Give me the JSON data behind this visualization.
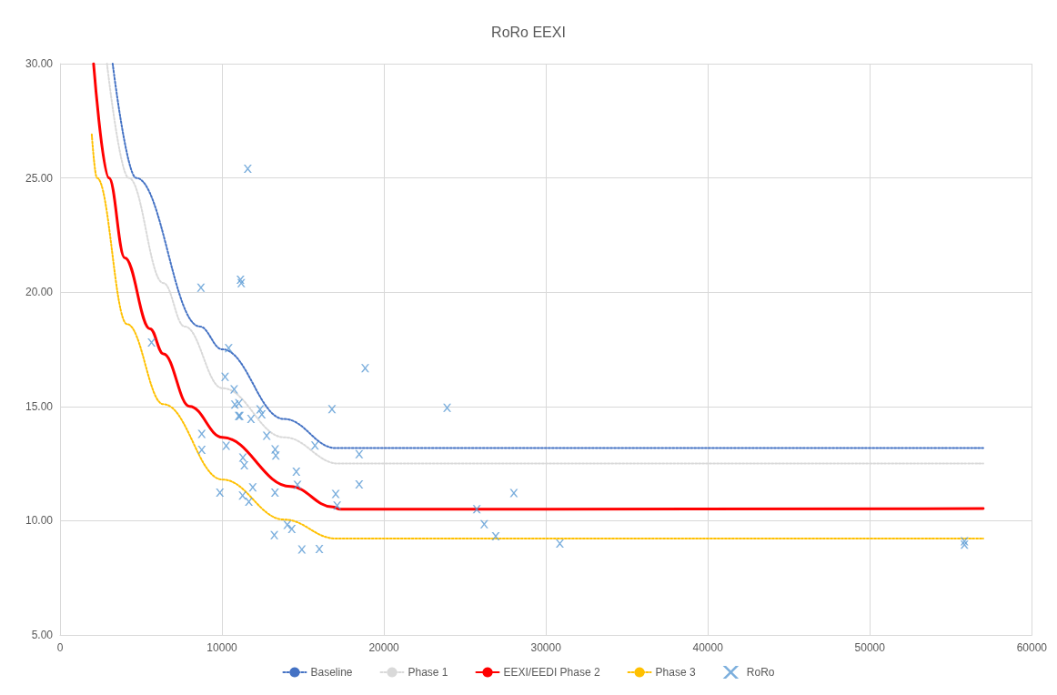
{
  "chart_data": {
    "type": "scatter",
    "title": "RoRo EEXI",
    "xlim": [
      0,
      60000
    ],
    "xticks": [
      0,
      10000,
      20000,
      30000,
      40000,
      50000,
      60000
    ],
    "ylim": [
      5,
      30
    ],
    "yticks": [
      {
        "value": 5,
        "label": "5.00"
      },
      {
        "value": 10,
        "label": "10.00"
      },
      {
        "value": 15,
        "label": "15.00"
      },
      {
        "value": 20,
        "label": "20.00"
      },
      {
        "value": 25,
        "label": "25.00"
      },
      {
        "value": 30,
        "label": "30.00"
      }
    ],
    "grid": true,
    "legend": "bottom",
    "series": [
      {
        "name": "Baseline",
        "type": "line",
        "color": "#4472c4",
        "line_style": "dotted",
        "marker": "none",
        "x": [
          3250,
          4700,
          8620,
          10020,
          13840,
          17020,
          57000
        ],
        "values": [
          30,
          25,
          18.5,
          17.5,
          14.45,
          13.18,
          13.18
        ]
      },
      {
        "name": "Phase 1",
        "type": "line",
        "color": "#d9d9d9",
        "line_style": "dotted",
        "marker": "none",
        "x": [
          2900,
          4240,
          6380,
          7690,
          10020,
          13840,
          17200,
          57000
        ],
        "values": [
          30,
          25,
          20.4,
          18.5,
          15.8,
          13.65,
          12.5,
          12.5
        ]
      },
      {
        "name": "EEXI/EEDI Phase 2",
        "type": "line",
        "color": "#ff0000",
        "line_style": "solid",
        "marker": "none",
        "x": [
          2070,
          3020,
          4000,
          5560,
          6380,
          8000,
          10020,
          14220,
          16830,
          17300,
          57000
        ],
        "values": [
          30,
          25,
          21.5,
          18.4,
          17.3,
          15,
          13.65,
          11.5,
          10.6,
          10.5,
          10.53
        ]
      },
      {
        "name": "Phase 3",
        "type": "line",
        "color": "#ffc000",
        "line_style": "dotted",
        "marker": "none",
        "x": [
          1960,
          2280,
          4140,
          6380,
          10020,
          13840,
          17020,
          57000
        ],
        "values": [
          26.9,
          25,
          18.6,
          15.1,
          11.8,
          10.05,
          9.22,
          9.22
        ]
      },
      {
        "name": "RoRo",
        "color": "#5b9bd5",
        "marker": "cross",
        "x": [
          8700,
          5650,
          11590,
          11140,
          11190,
          10410,
          10190,
          10750,
          10790,
          11040,
          11030,
          11100,
          11790,
          12350,
          12460,
          12760,
          8750,
          8750,
          10260,
          13280,
          13320,
          11290,
          11380,
          14590,
          14660,
          15740,
          16790,
          18470,
          18470,
          17020,
          17110,
          18840,
          9870,
          11900,
          11270,
          11660,
          13270,
          13230,
          14030,
          14310,
          14930,
          16010,
          23900,
          25730,
          26190,
          26900,
          28020,
          30860,
          55840,
          55840
        ],
        "values": [
          20.2,
          17.8,
          25.4,
          20.55,
          20.4,
          17.55,
          16.3,
          15.75,
          15.08,
          15.14,
          14.58,
          14.58,
          14.45,
          14.87,
          14.65,
          13.72,
          13.8,
          13.1,
          13.28,
          13.12,
          12.85,
          12.76,
          12.42,
          12.15,
          11.57,
          13.29,
          14.88,
          12.91,
          11.59,
          11.17,
          10.66,
          16.67,
          11.23,
          11.46,
          11.1,
          10.83,
          11.23,
          9.37,
          9.82,
          9.64,
          8.74,
          8.76,
          14.94,
          10.5,
          9.85,
          9.32,
          11.21,
          9.0,
          9.1,
          8.95
        ]
      }
    ]
  }
}
